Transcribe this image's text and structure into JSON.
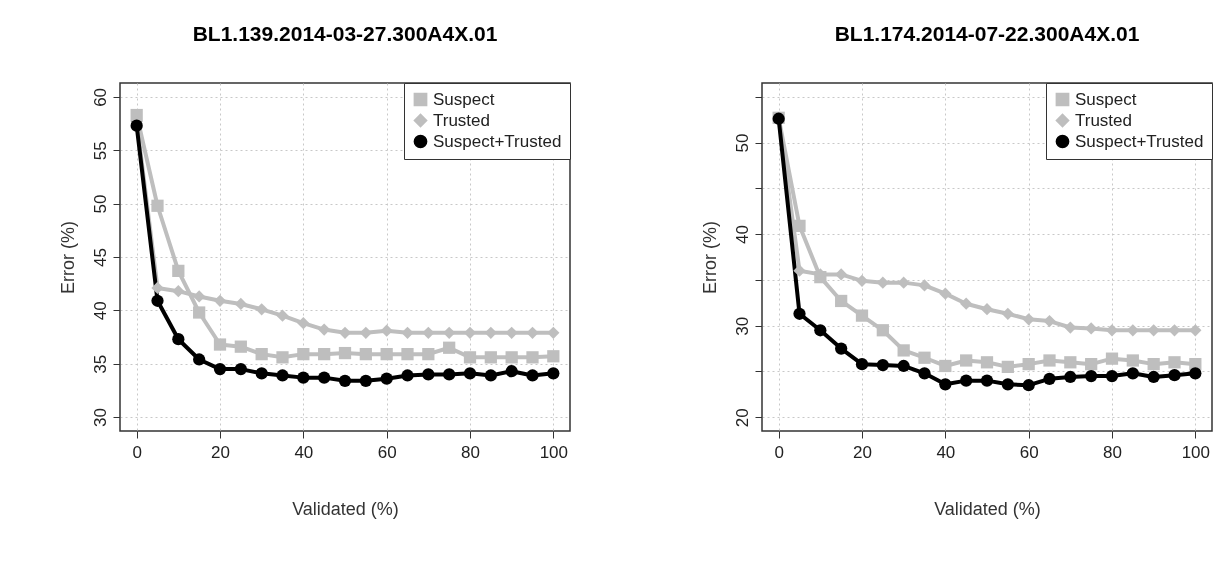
{
  "chart_data": [
    {
      "type": "line",
      "title": "BL1.139.2014-03-27.300A4X.01",
      "xlabel": "Validated (%)",
      "ylabel": "Error (%)",
      "x": [
        0,
        5,
        10,
        15,
        20,
        25,
        30,
        35,
        40,
        45,
        50,
        55,
        60,
        65,
        70,
        75,
        80,
        85,
        90,
        95,
        100
      ],
      "xlim": [
        -4,
        104
      ],
      "xticks": [
        0,
        20,
        40,
        60,
        80,
        100
      ],
      "ylim": [
        28.7,
        61.3
      ],
      "yticks": [
        30,
        35,
        40,
        45,
        50,
        55,
        60
      ],
      "grid": true,
      "legend": "top right",
      "series": [
        {
          "name": "Suspect",
          "color": "#bebebe",
          "marker": "square",
          "values": [
            58.3,
            49.8,
            43.7,
            39.8,
            36.8,
            36.6,
            35.9,
            35.6,
            35.9,
            35.9,
            36.0,
            35.9,
            35.9,
            35.9,
            35.9,
            36.5,
            35.6,
            35.6,
            35.6,
            35.6,
            35.7
          ]
        },
        {
          "name": "Trusted",
          "color": "#bebebe",
          "marker": "diamond",
          "values": [
            57.7,
            42.1,
            41.8,
            41.3,
            40.9,
            40.6,
            40.1,
            39.5,
            38.8,
            38.2,
            37.9,
            37.9,
            38.1,
            37.9,
            37.9,
            37.9,
            37.9,
            37.9,
            37.9,
            37.9,
            37.9
          ]
        },
        {
          "name": "Suspect+Trusted",
          "color": "#000000",
          "marker": "circle",
          "values": [
            57.3,
            40.9,
            37.3,
            35.4,
            34.5,
            34.5,
            34.1,
            33.9,
            33.7,
            33.7,
            33.4,
            33.4,
            33.6,
            33.9,
            34.0,
            34.0,
            34.1,
            33.9,
            34.3,
            33.9,
            34.1
          ]
        }
      ]
    },
    {
      "type": "line",
      "title": "BL1.174.2014-07-22.300A4X.01",
      "xlabel": "Validated (%)",
      "ylabel": "Error (%)",
      "x": [
        0,
        5,
        10,
        15,
        20,
        25,
        30,
        35,
        40,
        45,
        50,
        55,
        60,
        65,
        70,
        75,
        80,
        85,
        90,
        95,
        100
      ],
      "xlim": [
        -4,
        104
      ],
      "xticks": [
        0,
        20,
        40,
        60,
        80,
        100
      ],
      "ylim": [
        18.5,
        56.5
      ],
      "yticks": [
        20,
        {
          "value": 25,
          "label": null
        },
        30,
        {
          "value": 35,
          "label": null
        },
        40,
        {
          "value": 45,
          "label": null
        },
        50,
        {
          "value": 55,
          "label": null
        }
      ],
      "grid": true,
      "legend": "top right",
      "series": [
        {
          "name": "Suspect",
          "color": "#bebebe",
          "marker": "square",
          "values": [
            52.7,
            40.9,
            35.3,
            32.7,
            31.1,
            29.5,
            27.3,
            26.5,
            25.6,
            26.2,
            26.0,
            25.5,
            25.8,
            26.2,
            26.0,
            25.8,
            26.4,
            26.2,
            25.8,
            26.0,
            25.8
          ]
        },
        {
          "name": "Trusted",
          "color": "#bebebe",
          "marker": "diamond",
          "values": [
            52.7,
            36.0,
            35.6,
            35.6,
            34.9,
            34.7,
            34.7,
            34.4,
            33.5,
            32.4,
            31.8,
            31.3,
            30.7,
            30.5,
            29.8,
            29.7,
            29.5,
            29.5,
            29.5,
            29.5,
            29.5
          ]
        },
        {
          "name": "Suspect+Trusted",
          "color": "#000000",
          "marker": "circle",
          "values": [
            52.6,
            31.3,
            29.5,
            27.5,
            25.8,
            25.7,
            25.6,
            24.8,
            23.6,
            24.0,
            24.0,
            23.6,
            23.5,
            24.2,
            24.4,
            24.5,
            24.5,
            24.8,
            24.4,
            24.6,
            24.8
          ]
        }
      ]
    }
  ]
}
